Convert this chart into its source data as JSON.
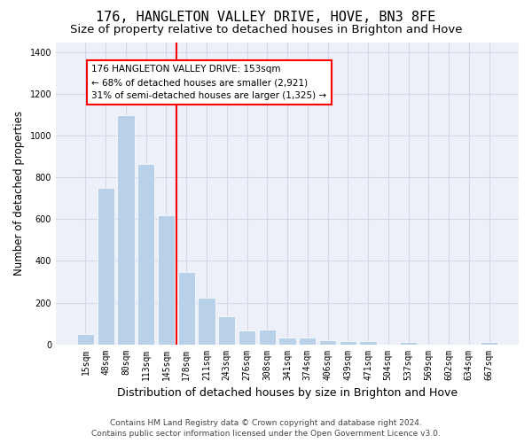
{
  "title": "176, HANGLETON VALLEY DRIVE, HOVE, BN3 8FE",
  "subtitle": "Size of property relative to detached houses in Brighton and Hove",
  "xlabel": "Distribution of detached houses by size in Brighton and Hove",
  "ylabel": "Number of detached properties",
  "bar_labels": [
    "15sqm",
    "48sqm",
    "80sqm",
    "113sqm",
    "145sqm",
    "178sqm",
    "211sqm",
    "243sqm",
    "276sqm",
    "308sqm",
    "341sqm",
    "374sqm",
    "406sqm",
    "439sqm",
    "471sqm",
    "504sqm",
    "537sqm",
    "569sqm",
    "602sqm",
    "634sqm",
    "667sqm"
  ],
  "bar_values": [
    50,
    750,
    1100,
    865,
    620,
    345,
    225,
    135,
    65,
    70,
    30,
    30,
    20,
    15,
    15,
    0,
    12,
    0,
    0,
    0,
    12
  ],
  "bar_color": "#b8d0e8",
  "reference_line_color": "red",
  "annotation_text": "176 HANGLETON VALLEY DRIVE: 153sqm\n← 68% of detached houses are smaller (2,921)\n31% of semi-detached houses are larger (1,325) →",
  "annotation_box_color": "red",
  "annotation_bg_color": "white",
  "ylim": [
    0,
    1450
  ],
  "yticks": [
    0,
    200,
    400,
    600,
    800,
    1000,
    1200,
    1400
  ],
  "grid_color": "#d0d8e8",
  "bg_color": "#edf0f8",
  "footer_line1": "Contains HM Land Registry data © Crown copyright and database right 2024.",
  "footer_line2": "Contains public sector information licensed under the Open Government Licence v3.0.",
  "title_fontsize": 11,
  "subtitle_fontsize": 9.5,
  "xlabel_fontsize": 9,
  "ylabel_fontsize": 8.5,
  "tick_fontsize": 7,
  "annotation_fontsize": 7.5,
  "footer_fontsize": 6.5
}
